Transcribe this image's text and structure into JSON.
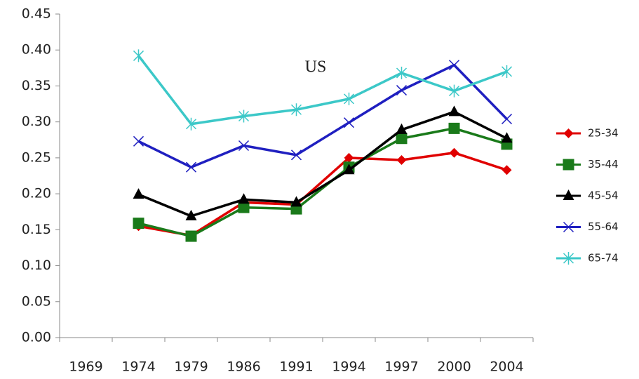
{
  "chart_data": {
    "type": "line",
    "title": "US",
    "categories": [
      "1969",
      "1974",
      "1979",
      "1986",
      "1991",
      "1994",
      "1997",
      "2000",
      "2004"
    ],
    "series": [
      {
        "name": "25-34",
        "color": "#e00000",
        "marker": "diamond",
        "values": [
          null,
          0.155,
          0.142,
          0.188,
          0.185,
          0.25,
          0.247,
          0.257,
          0.233
        ]
      },
      {
        "name": "35-44",
        "color": "#1a7a1a",
        "marker": "square",
        "values": [
          null,
          0.159,
          0.141,
          0.181,
          0.179,
          0.237,
          0.277,
          0.291,
          0.269
        ]
      },
      {
        "name": "45-54",
        "color": "#000000",
        "marker": "triangle",
        "values": [
          null,
          0.199,
          0.169,
          0.192,
          0.188,
          0.233,
          0.289,
          0.314,
          0.277
        ]
      },
      {
        "name": "55-64",
        "color": "#1f1fc0",
        "marker": "x",
        "values": [
          null,
          0.273,
          0.237,
          0.267,
          0.254,
          0.299,
          0.344,
          0.379,
          0.304
        ]
      },
      {
        "name": "65-74",
        "color": "#3cc8c8",
        "marker": "asterisk",
        "values": [
          null,
          0.392,
          0.297,
          0.308,
          0.317,
          0.332,
          0.368,
          0.343,
          0.37
        ]
      }
    ],
    "ylim": [
      0,
      0.45
    ],
    "yticks": [
      {
        "value": 0,
        "label": "0.00"
      },
      0.05,
      {
        "value": 0.1,
        "label": "0.10"
      },
      0.15,
      {
        "value": 0.2,
        "label": "0.20"
      },
      0.25,
      {
        "value": 0.3,
        "label": "0.30"
      },
      0.35,
      {
        "value": 0.4,
        "label": "0.40"
      },
      0.45
    ],
    "grid": false,
    "legend": "right"
  }
}
